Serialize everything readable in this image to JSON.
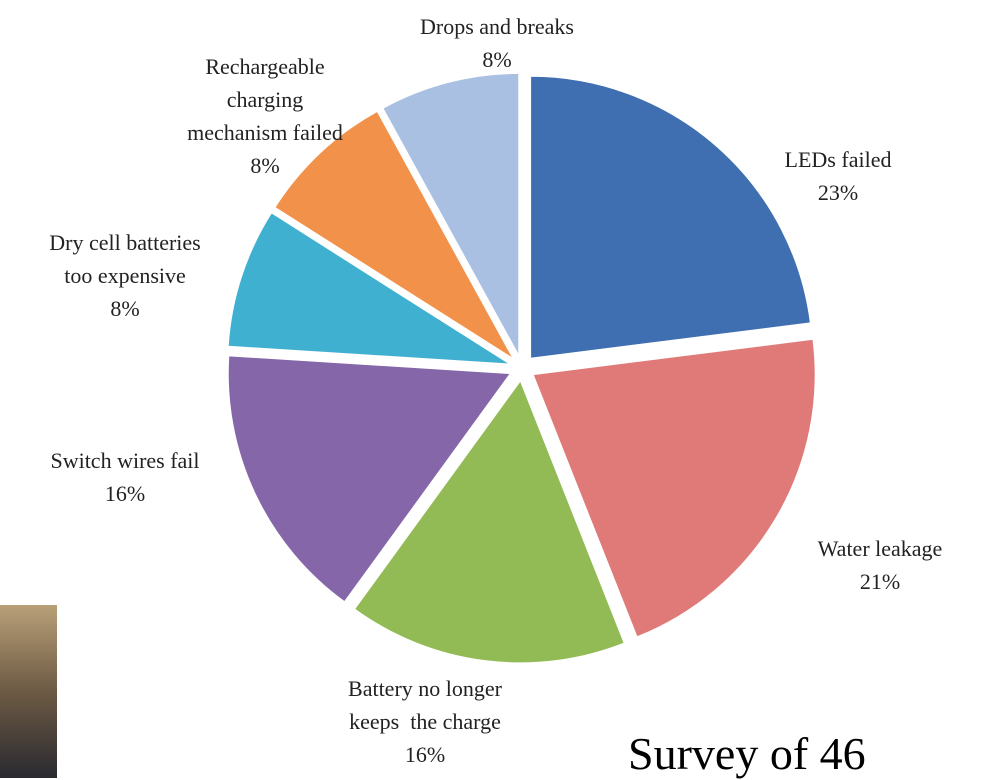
{
  "chart_data": {
    "type": "pie",
    "categories": [
      "LEDs failed",
      "Water leakage",
      "Battery no longer\nkeeps  the charge",
      "Switch wires fail",
      "Dry cell batteries\ntoo expensive",
      "Rechargeable\ncharging\nmechanism failed",
      "Drops and breaks"
    ],
    "values": [
      23,
      21,
      16,
      16,
      8,
      8,
      8
    ],
    "value_labels": [
      "23%",
      "21%",
      "16%",
      "16%",
      "8%",
      "8%",
      "8%"
    ],
    "colors": [
      "#3f6fb0",
      "#e07a78",
      "#93bb55",
      "#8566a8",
      "#3fb0cf",
      "#f2924a",
      "#a9c0e3"
    ],
    "annotation": "Survey of 46"
  }
}
